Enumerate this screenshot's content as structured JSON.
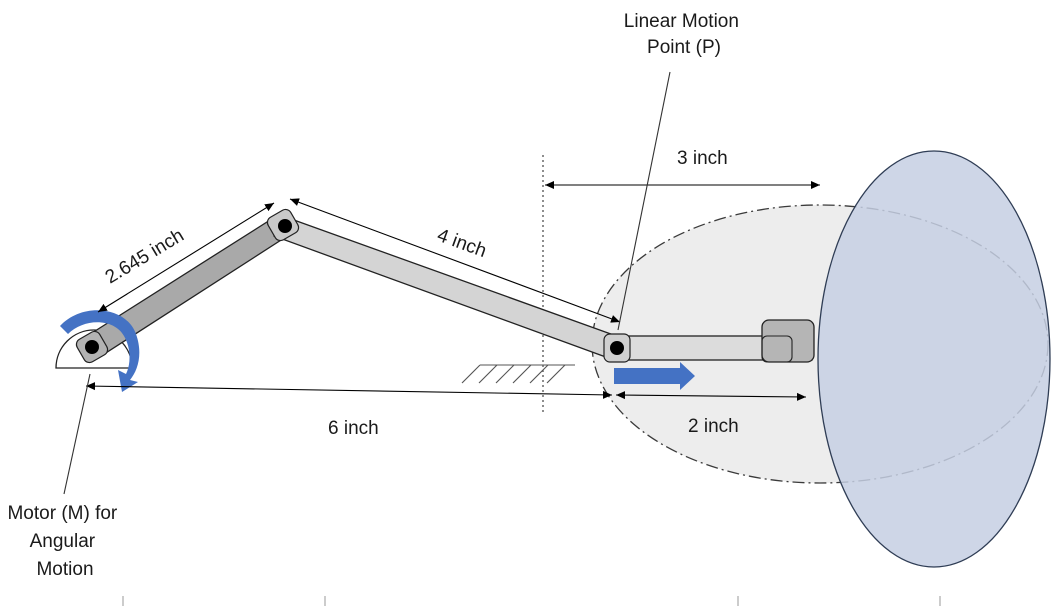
{
  "labels": {
    "linear_motion_point": [
      "Linear Motion",
      "Point (P)"
    ],
    "motor": [
      "Motor (M) for",
      "Angular",
      "Motion"
    ],
    "dim_crank": "2.645 inch",
    "dim_rod": "4 inch",
    "dim_3": "3 inch",
    "dim_6": "6 inch",
    "dim_2": "2 inch"
  },
  "colors": {
    "crank_fill": "#a9a9a9",
    "rod_fill": "#d4d4d4",
    "slider_fill": "#dcdcdc",
    "block_fill": "#b5b5b5",
    "dashed_ellipse_fill": "#ededed",
    "big_ellipse_fill": "#c5cfe3",
    "arrow_blue": "#4472c4",
    "line": "#000000"
  }
}
